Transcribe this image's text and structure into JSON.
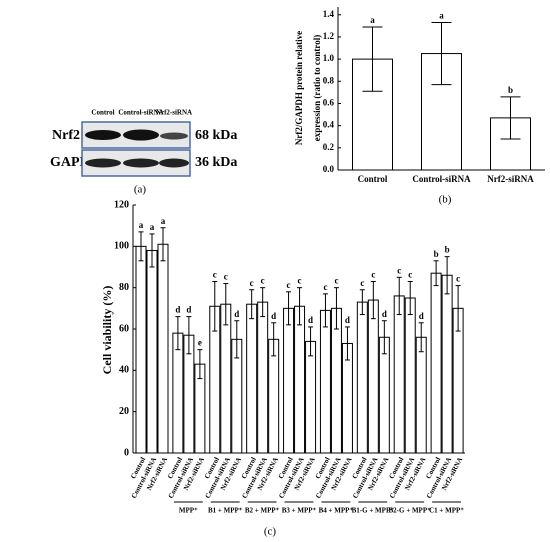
{
  "blot": {
    "columns": [
      "Control",
      "Control-siRNA",
      "Nrf2-siRNA"
    ],
    "rows": [
      {
        "name": "Nrf2",
        "size": "68 kDa"
      },
      {
        "name": "GAPDH",
        "size": "36 kDa"
      }
    ],
    "panel": "(a)"
  },
  "chart_data": [
    {
      "type": "bar",
      "panel": "(b)",
      "ylabel": [
        "Nrf2/GAPDH protein relative",
        "expression (ratio to control)"
      ],
      "categories": [
        "Control",
        "Control-siRNA",
        "Nrf2-siRNA"
      ],
      "values": [
        1.0,
        1.05,
        0.47
      ],
      "errors": [
        0.29,
        0.28,
        0.19
      ],
      "letters": [
        "a",
        "a",
        "b"
      ],
      "color": "#ffffff",
      "ylim": [
        0,
        1.47
      ],
      "yticks": [
        {
          "value": 0,
          "label": "0.0"
        },
        0.2,
        0.4,
        0.6,
        0.8,
        {
          "value": 1,
          "label": "1.0"
        },
        1.2,
        1.4
      ]
    },
    {
      "type": "bar",
      "panel": "(c)",
      "ylabel": "Cell viability (%)",
      "groups": [
        null,
        "MPP⁺",
        "B1 + MPP⁺",
        "B2 + MPP⁺",
        "B3 + MPP⁺",
        "B4 + MPP⁺",
        "B1-G + MPP⁺",
        "B2-G + MPP⁺",
        "C1 + MPP⁺"
      ],
      "color": "#ffffff",
      "series": [
        {
          "name": "Control",
          "values": [
            100,
            58,
            71,
            72,
            70,
            69,
            73,
            76,
            87
          ],
          "errors": [
            7,
            8,
            12,
            7,
            8,
            8,
            6,
            9,
            6
          ],
          "letters": [
            "a",
            "d",
            "c",
            "c",
            "c",
            "c",
            "c",
            "c",
            "b"
          ]
        },
        {
          "name": "Control-siRNA",
          "values": [
            98,
            57,
            72,
            73,
            71,
            70,
            74,
            75,
            86
          ],
          "errors": [
            8,
            9,
            10,
            7,
            9,
            10,
            9,
            8,
            9
          ],
          "letters": [
            "a",
            "d",
            "c",
            "c",
            "c",
            "c",
            "c",
            "c",
            "b"
          ]
        },
        {
          "name": "Nrf2-siRNA",
          "values": [
            101,
            43,
            55,
            55,
            54,
            53,
            56,
            56,
            70
          ],
          "errors": [
            8,
            7,
            9,
            8,
            7,
            8,
            8,
            7,
            11
          ],
          "letters": [
            "a",
            "e",
            "d",
            "d",
            "d",
            "d",
            "d",
            "d",
            "c"
          ]
        }
      ],
      "ylim": [
        0,
        120
      ],
      "yticks": [
        0,
        20,
        40,
        60,
        80,
        100,
        120
      ]
    }
  ]
}
